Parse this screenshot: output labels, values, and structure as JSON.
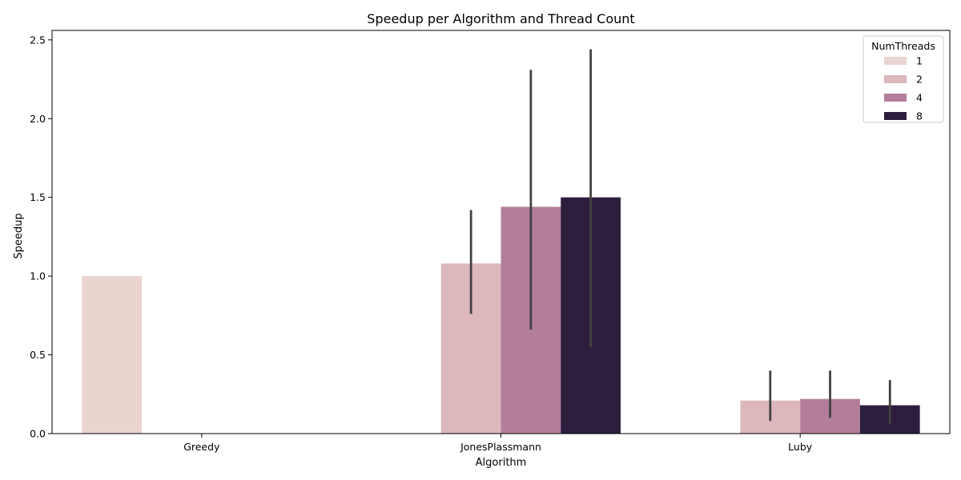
{
  "chart_data": {
    "type": "bar",
    "title": "Speedup per Algorithm and Thread Count",
    "xlabel": "Algorithm",
    "ylabel": "Speedup",
    "categories": [
      "Greedy",
      "JonesPlassmann",
      "Luby"
    ],
    "ylim": [
      0,
      2.5
    ],
    "yticks": [
      "0.0",
      "0.5",
      "1.0",
      "1.5",
      "2.0",
      "2.5"
    ],
    "legend": {
      "title": "NumThreads",
      "position": "top-right"
    },
    "series": [
      {
        "name": "1",
        "color": "#e9d4d0",
        "values": [
          1.0,
          null,
          null
        ],
        "err_low": [
          null,
          null,
          null
        ],
        "err_high": [
          null,
          null,
          null
        ]
      },
      {
        "name": "2",
        "color": "#dcb7bc",
        "values": [
          null,
          1.08,
          0.21
        ],
        "err_low": [
          null,
          0.76,
          0.08
        ],
        "err_high": [
          null,
          1.42,
          0.4
        ]
      },
      {
        "name": "4",
        "color": "#b27e9a",
        "values": [
          null,
          1.44,
          0.22
        ],
        "err_low": [
          null,
          0.66,
          0.1
        ],
        "err_high": [
          null,
          2.31,
          0.4
        ]
      },
      {
        "name": "8",
        "color": "#2d1e3e",
        "values": [
          null,
          1.5,
          0.18
        ],
        "err_low": [
          null,
          0.55,
          0.06
        ],
        "err_high": [
          null,
          2.44,
          0.34
        ]
      }
    ]
  }
}
